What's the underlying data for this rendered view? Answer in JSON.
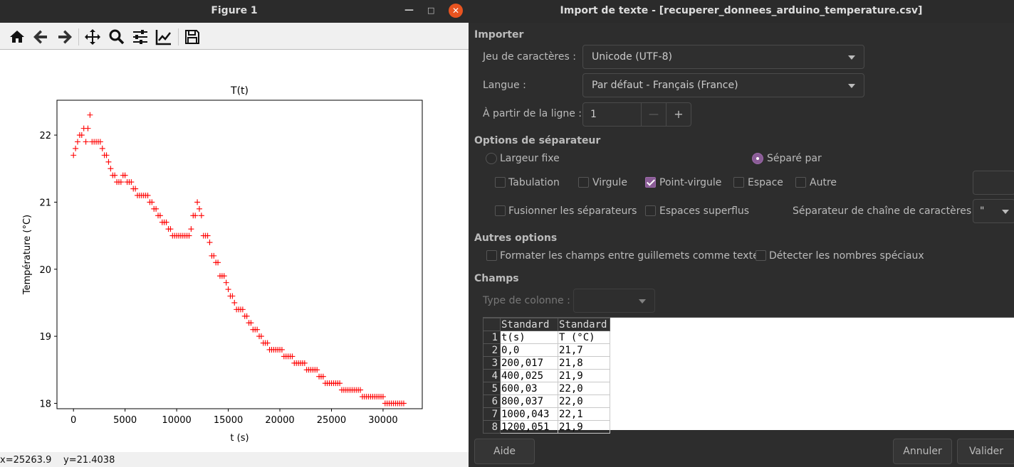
{
  "figure": {
    "window_title": "Figure 1",
    "status_x": "x=25263.9",
    "status_y": "y=21.4038",
    "toolbar": [
      "home-icon",
      "back-arrow-icon",
      "forward-arrow-icon",
      "move-icon",
      "zoom-icon",
      "configure-subplots-icon",
      "edit-axis-icon",
      "save-icon"
    ]
  },
  "chart_data": {
    "type": "scatter",
    "title": "T(t)",
    "xlabel": "t (s)",
    "ylabel": "Température (°C)",
    "xlim": [
      -1600,
      33800
    ],
    "ylim": [
      17.92,
      22.52
    ],
    "xticks": [
      0,
      5000,
      10000,
      15000,
      20000,
      25000,
      30000
    ],
    "yticks": [
      18,
      19,
      20,
      21,
      22
    ],
    "marker": "+",
    "color": "#ff0000",
    "points": [
      [
        0,
        21.7
      ],
      [
        200,
        21.8
      ],
      [
        400,
        21.9
      ],
      [
        600,
        22.0
      ],
      [
        800,
        22.0
      ],
      [
        1000,
        22.1
      ],
      [
        1200,
        21.9
      ],
      [
        1400,
        22.1
      ],
      [
        1600,
        22.3
      ],
      [
        1800,
        21.9
      ],
      [
        2000,
        21.9
      ],
      [
        2200,
        21.9
      ],
      [
        2400,
        21.9
      ],
      [
        2600,
        21.9
      ],
      [
        2800,
        21.8
      ],
      [
        3000,
        21.7
      ],
      [
        3200,
        21.7
      ],
      [
        3400,
        21.6
      ],
      [
        3600,
        21.5
      ],
      [
        3800,
        21.4
      ],
      [
        4000,
        21.4
      ],
      [
        4200,
        21.3
      ],
      [
        4400,
        21.3
      ],
      [
        4600,
        21.3
      ],
      [
        4800,
        21.4
      ],
      [
        5000,
        21.4
      ],
      [
        5200,
        21.3
      ],
      [
        5400,
        21.3
      ],
      [
        5600,
        21.3
      ],
      [
        5800,
        21.2
      ],
      [
        6000,
        21.2
      ],
      [
        6200,
        21.1
      ],
      [
        6400,
        21.1
      ],
      [
        6600,
        21.1
      ],
      [
        6800,
        21.1
      ],
      [
        7000,
        21.1
      ],
      [
        7200,
        21.1
      ],
      [
        7400,
        21.0
      ],
      [
        7600,
        21.0
      ],
      [
        7800,
        20.9
      ],
      [
        8000,
        20.9
      ],
      [
        8200,
        20.8
      ],
      [
        8400,
        20.8
      ],
      [
        8600,
        20.7
      ],
      [
        8800,
        20.7
      ],
      [
        9000,
        20.7
      ],
      [
        9200,
        20.6
      ],
      [
        9400,
        20.6
      ],
      [
        9600,
        20.5
      ],
      [
        9800,
        20.5
      ],
      [
        10000,
        20.5
      ],
      [
        10200,
        20.5
      ],
      [
        10400,
        20.5
      ],
      [
        10600,
        20.5
      ],
      [
        10800,
        20.5
      ],
      [
        11000,
        20.5
      ],
      [
        11200,
        20.5
      ],
      [
        11400,
        20.6
      ],
      [
        11600,
        20.8
      ],
      [
        11800,
        20.8
      ],
      [
        12000,
        21.0
      ],
      [
        12200,
        20.9
      ],
      [
        12400,
        20.8
      ],
      [
        12600,
        20.5
      ],
      [
        12800,
        20.5
      ],
      [
        13000,
        20.5
      ],
      [
        13200,
        20.4
      ],
      [
        13400,
        20.2
      ],
      [
        13600,
        20.2
      ],
      [
        13800,
        20.1
      ],
      [
        14000,
        20.1
      ],
      [
        14200,
        19.9
      ],
      [
        14400,
        19.9
      ],
      [
        14600,
        19.9
      ],
      [
        14800,
        19.8
      ],
      [
        15000,
        19.7
      ],
      [
        15200,
        19.6
      ],
      [
        15400,
        19.6
      ],
      [
        15600,
        19.5
      ],
      [
        15800,
        19.4
      ],
      [
        16000,
        19.4
      ],
      [
        16200,
        19.4
      ],
      [
        16400,
        19.4
      ],
      [
        16600,
        19.3
      ],
      [
        16800,
        19.3
      ],
      [
        17000,
        19.2
      ],
      [
        17200,
        19.2
      ],
      [
        17400,
        19.1
      ],
      [
        17600,
        19.1
      ],
      [
        17800,
        19.1
      ],
      [
        18000,
        19.0
      ],
      [
        18200,
        19.0
      ],
      [
        18400,
        18.9
      ],
      [
        18600,
        18.9
      ],
      [
        18800,
        18.9
      ],
      [
        19000,
        18.8
      ],
      [
        19200,
        18.8
      ],
      [
        19400,
        18.8
      ],
      [
        19600,
        18.8
      ],
      [
        19800,
        18.8
      ],
      [
        20000,
        18.8
      ],
      [
        20200,
        18.8
      ],
      [
        20400,
        18.7
      ],
      [
        20600,
        18.7
      ],
      [
        20800,
        18.7
      ],
      [
        21000,
        18.7
      ],
      [
        21200,
        18.7
      ],
      [
        21400,
        18.6
      ],
      [
        21600,
        18.6
      ],
      [
        21800,
        18.6
      ],
      [
        22000,
        18.6
      ],
      [
        22200,
        18.6
      ],
      [
        22400,
        18.6
      ],
      [
        22600,
        18.5
      ],
      [
        22800,
        18.5
      ],
      [
        23000,
        18.5
      ],
      [
        23200,
        18.5
      ],
      [
        23400,
        18.5
      ],
      [
        23600,
        18.5
      ],
      [
        23800,
        18.4
      ],
      [
        24000,
        18.4
      ],
      [
        24200,
        18.4
      ],
      [
        24400,
        18.3
      ],
      [
        24600,
        18.3
      ],
      [
        24800,
        18.3
      ],
      [
        25000,
        18.3
      ],
      [
        25200,
        18.3
      ],
      [
        25400,
        18.3
      ],
      [
        25600,
        18.3
      ],
      [
        25800,
        18.3
      ],
      [
        26000,
        18.2
      ],
      [
        26200,
        18.2
      ],
      [
        26400,
        18.2
      ],
      [
        26600,
        18.2
      ],
      [
        26800,
        18.2
      ],
      [
        27000,
        18.2
      ],
      [
        27200,
        18.2
      ],
      [
        27400,
        18.2
      ],
      [
        27600,
        18.2
      ],
      [
        27800,
        18.2
      ],
      [
        28000,
        18.1
      ],
      [
        28200,
        18.1
      ],
      [
        28400,
        18.1
      ],
      [
        28600,
        18.1
      ],
      [
        28800,
        18.1
      ],
      [
        29000,
        18.1
      ],
      [
        29200,
        18.1
      ],
      [
        29400,
        18.1
      ],
      [
        29600,
        18.1
      ],
      [
        29800,
        18.1
      ],
      [
        30000,
        18.1
      ],
      [
        30200,
        18.0
      ],
      [
        30400,
        18.0
      ],
      [
        30600,
        18.0
      ],
      [
        30800,
        18.0
      ],
      [
        31000,
        18.0
      ],
      [
        31200,
        18.0
      ],
      [
        31400,
        18.0
      ],
      [
        31600,
        18.0
      ],
      [
        31800,
        18.0
      ],
      [
        32000,
        18.0
      ]
    ]
  },
  "dialog": {
    "title": "Import de texte - [recuperer_donnees_arduino_temperature.csv]",
    "importer": {
      "section": "Importer",
      "charset_label": "Jeu de caractères :",
      "charset_value": "Unicode (UTF-8)",
      "lang_label": "Langue :",
      "lang_value": "Par défaut - Français (France)",
      "from_line_label": "À partir de la ligne :",
      "from_line_value": "1",
      "minus": "—",
      "plus": "+"
    },
    "separator": {
      "section": "Options de séparateur",
      "fixed_width": "Largeur fixe",
      "separated_by": "Séparé par",
      "tab": "Tabulation",
      "comma": "Virgule",
      "semicolon": "Point-virgule",
      "space": "Espace",
      "other": "Autre",
      "merge": "Fusionner les séparateurs",
      "trim": "Espaces superflus",
      "string_delim_label": "Séparateur de chaîne de caractères :",
      "string_delim_value": "\""
    },
    "other_options": {
      "section": "Autres options",
      "quoted_as_text": "Formater les champs entre guillemets comme texte",
      "detect_special": "Détecter les nombres spéciaux"
    },
    "fields": {
      "section": "Champs",
      "col_type_label": "Type de colonne :",
      "headers": [
        "Standard",
        "Standard"
      ],
      "rows": [
        [
          "1",
          "t(s)",
          "T (°C)"
        ],
        [
          "2",
          "0,0",
          "21,7"
        ],
        [
          "3",
          "200,017",
          "21,8"
        ],
        [
          "4",
          "400,025",
          "21,9"
        ],
        [
          "5",
          "600,03",
          "22,0"
        ],
        [
          "6",
          "800,037",
          "22,0"
        ],
        [
          "7",
          "1000,043",
          "22,1"
        ],
        [
          "8",
          "1200,051",
          "21,9"
        ]
      ]
    },
    "buttons": {
      "help": "Aide",
      "cancel": "Annuler",
      "ok": "Valider"
    }
  }
}
